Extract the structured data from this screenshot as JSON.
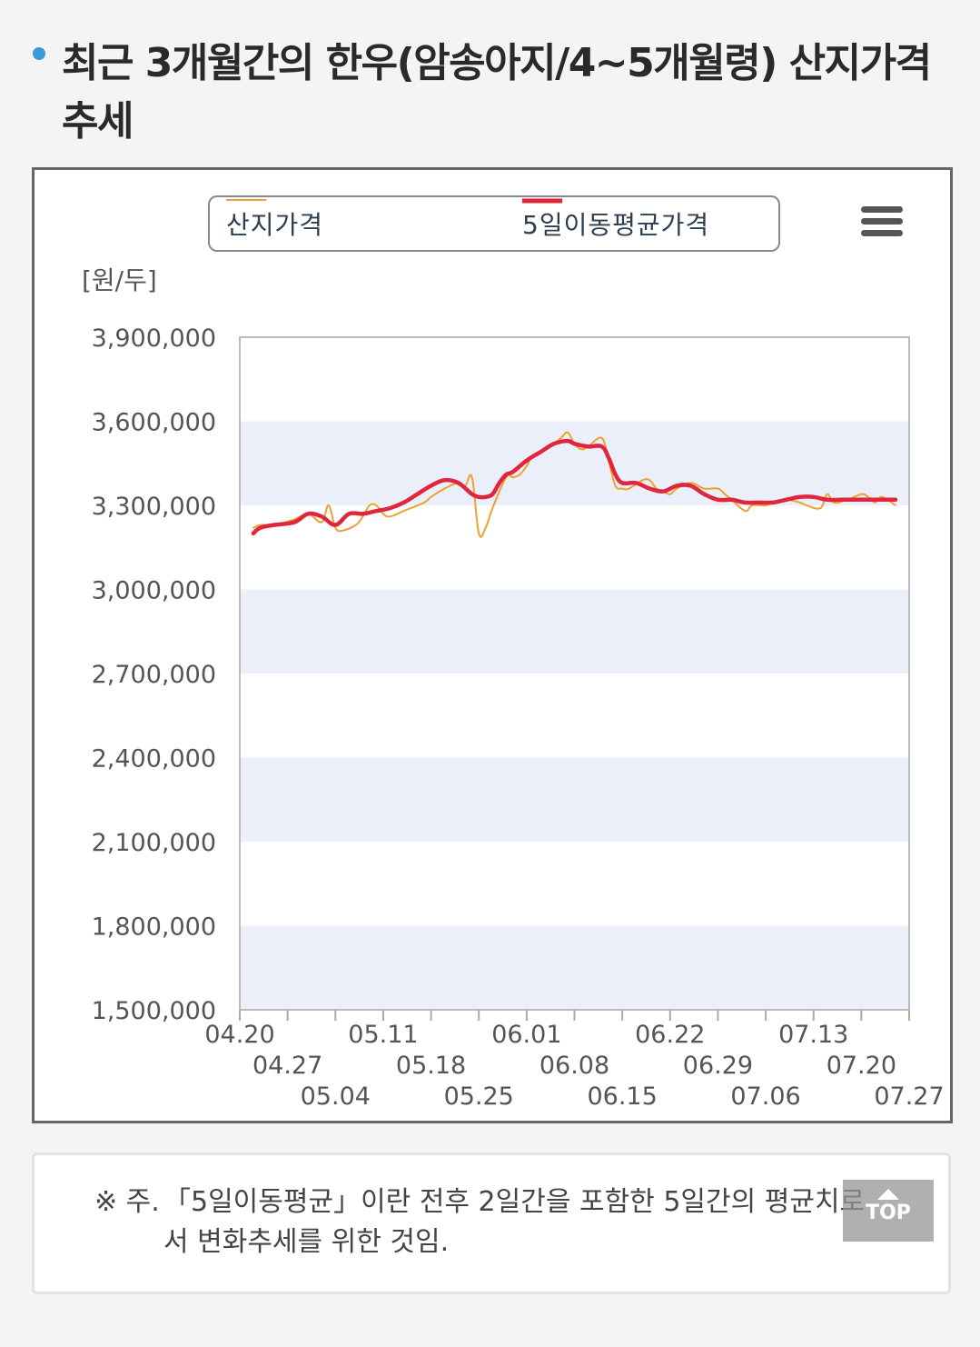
{
  "page": {
    "title": "최근 3개월간의 한우(암송아지/4~5개월령) 산지가격 추세",
    "note_mark": "※ 주.",
    "note": "「5일이동평균」이란 전후 2일간을 포함한 5일간의 평균치로서 변화추세를 위한 것임.",
    "top_button": "TOP"
  },
  "colors": {
    "price_line": "#f0a030",
    "avg_line": "#e0263c",
    "band": "#eaeff9",
    "bullet": "#3b9ad9"
  },
  "chart_data": {
    "type": "line",
    "unit_label": "[원/두]",
    "ylim": [
      1500000,
      3900000
    ],
    "yticks": [
      1500000,
      1800000,
      2100000,
      2400000,
      2700000,
      3000000,
      3300000,
      3600000,
      3900000
    ],
    "ytick_labels": [
      "1,500,000",
      "1,800,000",
      "2,100,000",
      "2,400,000",
      "2,700,000",
      "3,000,000",
      "3,300,000",
      "3,600,000",
      "3,900,000"
    ],
    "xlim": [
      "04.20",
      "07.27"
    ],
    "xtick_labels": [
      "04.20",
      "04.27",
      "05.04",
      "05.11",
      "05.18",
      "05.25",
      "06.01",
      "06.08",
      "06.15",
      "06.22",
      "06.29",
      "07.06",
      "07.13",
      "07.20",
      "07.27"
    ],
    "legend_position": "top",
    "grid_bands": true,
    "series": [
      {
        "name": "산지가격",
        "style": "thin",
        "x": [
          "04.22",
          "04.23",
          "04.25",
          "04.28",
          "04.30",
          "05.02",
          "05.03",
          "05.04",
          "05.05",
          "05.07",
          "05.08",
          "05.09",
          "05.10",
          "05.11",
          "05.12",
          "05.14",
          "05.15",
          "05.17",
          "05.18",
          "05.20",
          "05.22",
          "05.23",
          "05.24",
          "05.25",
          "05.26",
          "05.27",
          "05.29",
          "05.30",
          "05.31",
          "06.01",
          "06.02",
          "06.04",
          "06.06",
          "06.07",
          "06.08",
          "06.09",
          "06.10",
          "06.12",
          "06.13",
          "06.14",
          "06.15",
          "06.16",
          "06.18",
          "06.19",
          "06.20",
          "06.21",
          "06.22",
          "06.23",
          "06.25",
          "06.27",
          "06.29",
          "06.30",
          "07.01",
          "07.03",
          "07.04",
          "07.06",
          "07.07",
          "07.09",
          "07.11",
          "07.12",
          "07.14",
          "07.15",
          "07.16",
          "07.18",
          "07.20",
          "07.21",
          "07.22",
          "07.23",
          "07.25"
        ],
        "values": [
          3220000,
          3230000,
          3230000,
          3250000,
          3270000,
          3240000,
          3300000,
          3220000,
          3210000,
          3230000,
          3260000,
          3300000,
          3300000,
          3270000,
          3260000,
          3280000,
          3290000,
          3310000,
          3330000,
          3360000,
          3380000,
          3370000,
          3400000,
          3200000,
          3220000,
          3290000,
          3400000,
          3400000,
          3410000,
          3440000,
          3480000,
          3500000,
          3540000,
          3560000,
          3520000,
          3500000,
          3510000,
          3540000,
          3460000,
          3370000,
          3360000,
          3360000,
          3390000,
          3390000,
          3360000,
          3350000,
          3340000,
          3360000,
          3380000,
          3360000,
          3360000,
          3340000,
          3320000,
          3280000,
          3300000,
          3300000,
          3310000,
          3320000,
          3310000,
          3300000,
          3290000,
          3340000,
          3310000,
          3320000,
          3340000,
          3330000,
          3310000,
          3330000,
          3300000
        ]
      },
      {
        "name": "5일이동평균가격",
        "style": "thick",
        "x": [
          "04.22",
          "04.23",
          "04.25",
          "04.28",
          "04.30",
          "05.02",
          "05.04",
          "05.06",
          "05.08",
          "05.10",
          "05.12",
          "05.14",
          "05.16",
          "05.18",
          "05.20",
          "05.22",
          "05.24",
          "05.25",
          "05.26",
          "05.27",
          "05.28",
          "05.29",
          "05.30",
          "06.01",
          "06.03",
          "06.05",
          "06.07",
          "06.08",
          "06.10",
          "06.12",
          "06.13",
          "06.14",
          "06.15",
          "06.17",
          "06.19",
          "06.21",
          "06.23",
          "06.25",
          "06.27",
          "06.29",
          "07.01",
          "07.03",
          "07.05",
          "07.07",
          "07.09",
          "07.11",
          "07.13",
          "07.15",
          "07.17",
          "07.19",
          "07.21",
          "07.23",
          "07.25"
        ],
        "values": [
          3200000,
          3220000,
          3230000,
          3240000,
          3270000,
          3260000,
          3230000,
          3270000,
          3270000,
          3280000,
          3290000,
          3310000,
          3340000,
          3370000,
          3390000,
          3380000,
          3340000,
          3330000,
          3330000,
          3340000,
          3380000,
          3410000,
          3420000,
          3460000,
          3490000,
          3520000,
          3530000,
          3520000,
          3510000,
          3510000,
          3470000,
          3410000,
          3380000,
          3380000,
          3360000,
          3350000,
          3370000,
          3370000,
          3340000,
          3320000,
          3320000,
          3310000,
          3310000,
          3310000,
          3320000,
          3330000,
          3330000,
          3320000,
          3320000,
          3320000,
          3320000,
          3320000,
          3320000
        ]
      }
    ]
  }
}
